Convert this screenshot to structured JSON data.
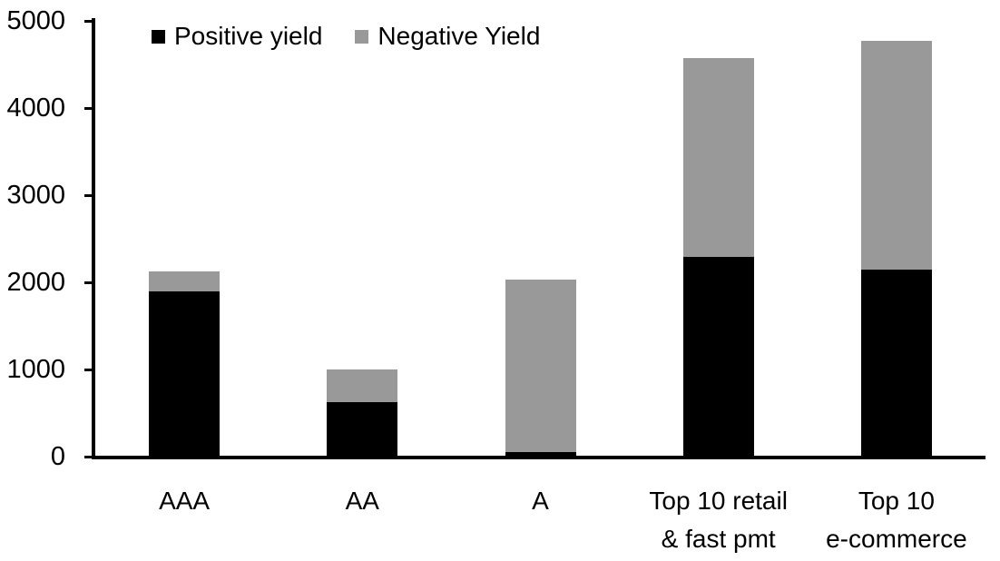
{
  "chart_data": {
    "type": "bar",
    "stacked": true,
    "title": "",
    "xlabel": "",
    "ylabel": "",
    "categories": [
      "AAA",
      "AA",
      "A",
      "Top 10 retail & fast pmt",
      "Top 10 e-commerce"
    ],
    "category_label_lines": [
      [
        "AAA"
      ],
      [
        "AA"
      ],
      [
        "A"
      ],
      [
        "Top 10 retail",
        "& fast pmt"
      ],
      [
        "Top 10",
        "e-commerce"
      ]
    ],
    "series": [
      {
        "name": "Positive yield",
        "color": "#000000",
        "values": [
          1900,
          625,
          50,
          2290,
          2150
        ]
      },
      {
        "name": "Negative Yield",
        "color": "#999999",
        "values": [
          230,
          375,
          1980,
          2280,
          2620
        ]
      }
    ],
    "stack_totals": [
      2130,
      1000,
      2030,
      4570,
      4770
    ],
    "ylim": [
      0,
      5000
    ],
    "yticks": [
      0,
      1000,
      2000,
      3000,
      4000,
      5000
    ],
    "legend_position": "top",
    "grid": false,
    "axis_color": "#000000",
    "background_color": "#ffffff"
  }
}
